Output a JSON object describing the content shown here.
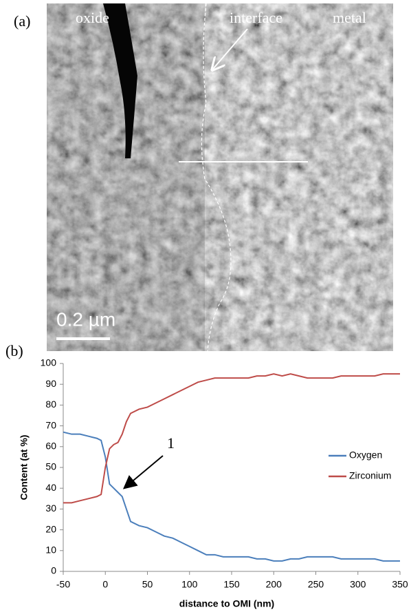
{
  "image_panel": {
    "label": "(a)",
    "annotations": [
      "oxide",
      "interface",
      "metal"
    ],
    "scale_bar": "0.2 µm"
  },
  "chart_data": {
    "type": "line",
    "panel_label": "(b)",
    "x_label": "distance to OMI (nm)",
    "y_label": "Content (at %)",
    "annotation": "1",
    "x": [
      -50,
      -40,
      -30,
      -20,
      -10,
      -5,
      0,
      5,
      10,
      15,
      20,
      25,
      30,
      40,
      50,
      60,
      70,
      80,
      90,
      100,
      110,
      120,
      130,
      140,
      150,
      160,
      170,
      180,
      190,
      200,
      210,
      220,
      230,
      240,
      250,
      260,
      270,
      280,
      290,
      300,
      310,
      320,
      330,
      340,
      350
    ],
    "series": [
      {
        "name": "Oxygen",
        "color": "#4a7ebb",
        "values": [
          67,
          66,
          66,
          65,
          64,
          63,
          55,
          42,
          40,
          38,
          36,
          30,
          24,
          22,
          21,
          19,
          17,
          16,
          14,
          12,
          10,
          8,
          8,
          7,
          7,
          7,
          7,
          6,
          6,
          5,
          5,
          6,
          6,
          7,
          7,
          7,
          7,
          6,
          6,
          6,
          6,
          6,
          5,
          5,
          5
        ]
      },
      {
        "name": "Zirconium",
        "color": "#be4b48",
        "values": [
          33,
          33,
          34,
          35,
          36,
          37,
          50,
          59,
          61,
          62,
          66,
          72,
          76,
          78,
          79,
          81,
          83,
          85,
          87,
          89,
          91,
          92,
          93,
          93,
          93,
          93,
          93,
          94,
          94,
          95,
          94,
          95,
          94,
          93,
          93,
          93,
          93,
          94,
          94,
          94,
          94,
          94,
          95,
          95,
          95
        ]
      }
    ],
    "xlim": [
      -50,
      350
    ],
    "xticks": [
      -50,
      0,
      50,
      100,
      150,
      200,
      250,
      300,
      350
    ],
    "ylim": [
      0,
      100
    ],
    "yticks": [
      0,
      10,
      20,
      30,
      40,
      50,
      60,
      70,
      80,
      90,
      100
    ],
    "grid": false,
    "legend": "right"
  }
}
